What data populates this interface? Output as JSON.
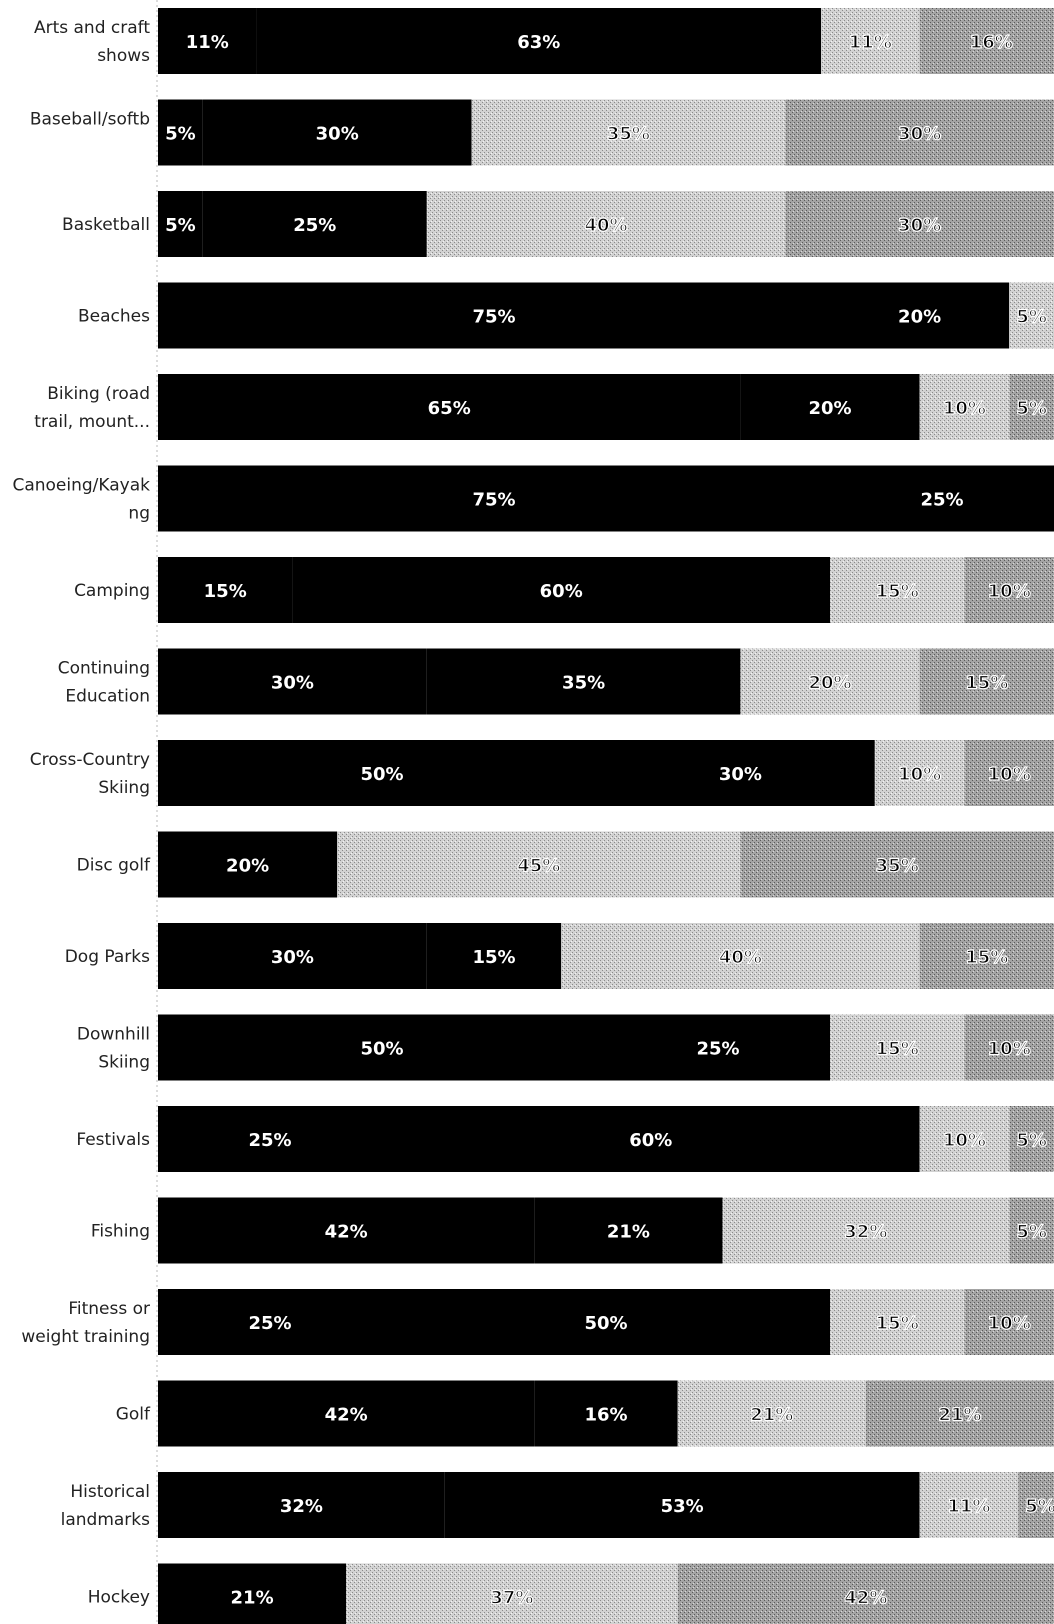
{
  "chart_data": {
    "type": "bar",
    "orientation": "horizontal",
    "stacked": true,
    "value_unit": "%",
    "grid": false,
    "legend": "none",
    "segment_colors": [
      "#000000",
      "#000000",
      "#c6c6c6",
      "#9a9a9a"
    ],
    "categories": [
      {
        "label_lines": [
          "Arts and craft",
          "shows"
        ],
        "values": [
          11,
          63,
          11,
          16
        ]
      },
      {
        "label_lines": [
          "Baseball/softb",
          ""
        ],
        "values": [
          5,
          30,
          35,
          30
        ]
      },
      {
        "label_lines": [
          "Basketball"
        ],
        "values": [
          5,
          25,
          40,
          30
        ]
      },
      {
        "label_lines": [
          "Beaches"
        ],
        "values": [
          75,
          20,
          5
        ]
      },
      {
        "label_lines": [
          "Biking (road",
          "trail, mount..."
        ],
        "values": [
          65,
          20,
          10,
          5
        ]
      },
      {
        "label_lines": [
          "Canoeing/Kayak",
          "ng"
        ],
        "values": [
          75,
          25
        ]
      },
      {
        "label_lines": [
          "Camping"
        ],
        "values": [
          15,
          60,
          15,
          10
        ]
      },
      {
        "label_lines": [
          "Continuing",
          "Education"
        ],
        "values": [
          30,
          35,
          20,
          15
        ]
      },
      {
        "label_lines": [
          "Cross-Country",
          "Skiing"
        ],
        "values": [
          50,
          30,
          10,
          10
        ]
      },
      {
        "label_lines": [
          "Disc golf"
        ],
        "values": [
          20,
          45,
          35
        ]
      },
      {
        "label_lines": [
          "Dog Parks"
        ],
        "values": [
          30,
          15,
          40,
          15
        ]
      },
      {
        "label_lines": [
          "Downhill",
          "Skiing"
        ],
        "values": [
          50,
          25,
          15,
          10
        ]
      },
      {
        "label_lines": [
          "Festivals"
        ],
        "values": [
          25,
          60,
          10,
          5
        ]
      },
      {
        "label_lines": [
          "Fishing"
        ],
        "values": [
          42,
          21,
          32,
          5
        ]
      },
      {
        "label_lines": [
          "Fitness or",
          "weight training"
        ],
        "values": [
          25,
          50,
          15,
          10
        ]
      },
      {
        "label_lines": [
          "Golf"
        ],
        "values": [
          42,
          16,
          21,
          21
        ]
      },
      {
        "label_lines": [
          "Historical",
          "landmarks"
        ],
        "values": [
          32,
          53,
          11,
          5
        ]
      },
      {
        "label_lines": [
          "Hockey"
        ],
        "values": [
          21,
          37,
          42
        ]
      }
    ],
    "segment_shading": [
      [
        "dark",
        "dark",
        "light",
        "mid"
      ],
      [
        "dark",
        "dark",
        "light",
        "mid"
      ],
      [
        "dark",
        "dark",
        "light",
        "mid"
      ],
      [
        "dark",
        "dark",
        "light"
      ],
      [
        "dark",
        "dark",
        "light",
        "mid"
      ],
      [
        "dark",
        "dark"
      ],
      [
        "dark",
        "dark",
        "light",
        "mid"
      ],
      [
        "dark",
        "dark",
        "light",
        "mid"
      ],
      [
        "dark",
        "dark",
        "light",
        "mid"
      ],
      [
        "dark",
        "light",
        "mid"
      ],
      [
        "dark",
        "dark",
        "light",
        "mid"
      ],
      [
        "dark",
        "dark",
        "light",
        "mid"
      ],
      [
        "dark",
        "dark",
        "light",
        "mid"
      ],
      [
        "dark",
        "dark",
        "light",
        "mid"
      ],
      [
        "dark",
        "dark",
        "light",
        "mid"
      ],
      [
        "dark",
        "dark",
        "light",
        "mid"
      ],
      [
        "dark",
        "dark",
        "light",
        "mid"
      ],
      [
        "dark",
        "light",
        "mid"
      ]
    ],
    "shade_colors": {
      "dark": "#000000",
      "light": "#c9c9c9",
      "mid": "#9c9c9c"
    },
    "xlim": [
      0,
      100
    ]
  }
}
